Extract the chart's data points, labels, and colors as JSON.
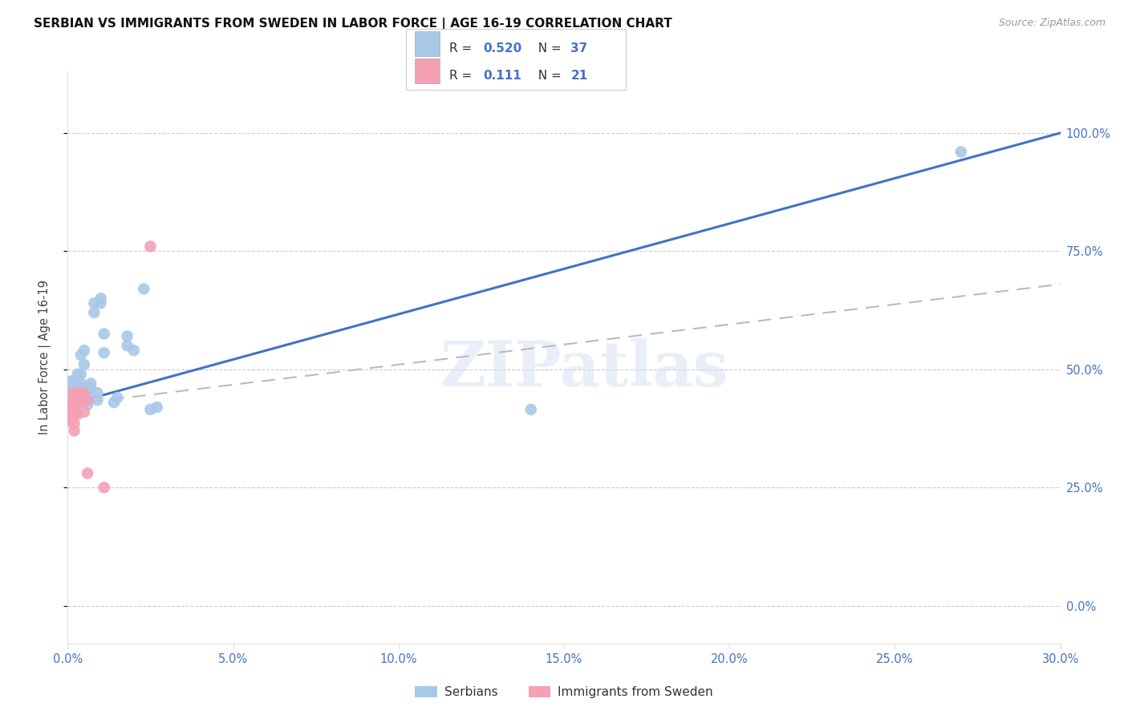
{
  "title": "SERBIAN VS IMMIGRANTS FROM SWEDEN IN LABOR FORCE | AGE 16-19 CORRELATION CHART",
  "source": "Source: ZipAtlas.com",
  "ylabel": "In Labor Force | Age 16-19",
  "xlim": [
    0.0,
    0.3
  ],
  "ylim": [
    -0.08,
    1.13
  ],
  "watermark": "ZIPatlas",
  "blue_color": "#a8c8e8",
  "pink_color": "#f4a0b5",
  "blue_line_color": "#4472C4",
  "pink_line_color": "#bbbbbb",
  "serbian_points": [
    [
      0.001,
      0.455
    ],
    [
      0.001,
      0.475
    ],
    [
      0.002,
      0.455
    ],
    [
      0.002,
      0.435
    ],
    [
      0.002,
      0.475
    ],
    [
      0.003,
      0.44
    ],
    [
      0.003,
      0.46
    ],
    [
      0.003,
      0.49
    ],
    [
      0.003,
      0.45
    ],
    [
      0.004,
      0.47
    ],
    [
      0.004,
      0.46
    ],
    [
      0.004,
      0.49
    ],
    [
      0.004,
      0.53
    ],
    [
      0.005,
      0.51
    ],
    [
      0.005,
      0.54
    ],
    [
      0.006,
      0.45
    ],
    [
      0.006,
      0.425
    ],
    [
      0.007,
      0.46
    ],
    [
      0.007,
      0.47
    ],
    [
      0.008,
      0.62
    ],
    [
      0.008,
      0.64
    ],
    [
      0.009,
      0.45
    ],
    [
      0.009,
      0.435
    ],
    [
      0.01,
      0.64
    ],
    [
      0.01,
      0.65
    ],
    [
      0.011,
      0.535
    ],
    [
      0.011,
      0.575
    ],
    [
      0.014,
      0.43
    ],
    [
      0.015,
      0.44
    ],
    [
      0.018,
      0.55
    ],
    [
      0.018,
      0.57
    ],
    [
      0.02,
      0.54
    ],
    [
      0.023,
      0.67
    ],
    [
      0.025,
      0.415
    ],
    [
      0.027,
      0.42
    ],
    [
      0.14,
      0.415
    ],
    [
      0.27,
      0.96
    ]
  ],
  "immigrant_points": [
    [
      0.001,
      0.445
    ],
    [
      0.001,
      0.425
    ],
    [
      0.001,
      0.415
    ],
    [
      0.001,
      0.4
    ],
    [
      0.001,
      0.39
    ],
    [
      0.002,
      0.45
    ],
    [
      0.002,
      0.43
    ],
    [
      0.002,
      0.42
    ],
    [
      0.002,
      0.405
    ],
    [
      0.002,
      0.385
    ],
    [
      0.002,
      0.37
    ],
    [
      0.003,
      0.45
    ],
    [
      0.003,
      0.43
    ],
    [
      0.003,
      0.405
    ],
    [
      0.004,
      0.45
    ],
    [
      0.004,
      0.43
    ],
    [
      0.005,
      0.45
    ],
    [
      0.005,
      0.41
    ],
    [
      0.006,
      0.435
    ],
    [
      0.006,
      0.28
    ],
    [
      0.011,
      0.25
    ],
    [
      0.025,
      0.76
    ]
  ],
  "blue_trend_x": [
    0.0,
    0.3
  ],
  "blue_trend_y": [
    0.425,
    1.0
  ],
  "pink_trend_x": [
    0.0,
    0.3
  ],
  "pink_trend_y": [
    0.425,
    0.68
  ]
}
